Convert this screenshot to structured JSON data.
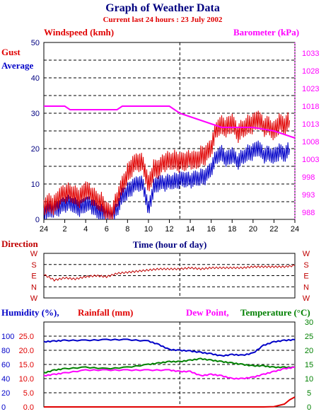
{
  "title": "Graph of Weather Data",
  "subtitle": "Current last 24 hours : 23 July 2002",
  "colors": {
    "gust": "#e00000",
    "average": "#0000c8",
    "barometer": "#ff00ff",
    "direction": "#c00000",
    "humidity": "#0000c8",
    "rainfall": "#e00000",
    "dewpoint": "#ff00ff",
    "temperature": "#008000",
    "grid": "#000000"
  },
  "chart_data": [
    {
      "type": "line",
      "name": "wind-barometer",
      "labels": {
        "left_title": "Windspeed (kmh)",
        "right_title": "Barometer (kPa)",
        "gust": "Gust",
        "average": "Average",
        "xlabel": "Time (hour of day)"
      },
      "x_ticks": [
        "24",
        "2",
        "4",
        "6",
        "8",
        "10",
        "12",
        "14",
        "16",
        "18",
        "20",
        "22",
        "24"
      ],
      "y_left_ticks": [
        "0",
        "10",
        "20",
        "30",
        "40",
        "50"
      ],
      "y_right_ticks": [
        "988",
        "993",
        "998",
        "1003",
        "1008",
        "1013",
        "1018",
        "1023",
        "1028",
        "1033"
      ],
      "xlim": [
        0,
        24
      ],
      "ylim_left": [
        0,
        50
      ],
      "ylim_right": [
        986,
        1036
      ],
      "marker_hour": 13,
      "series": [
        {
          "name": "Gust",
          "x": [
            0,
            0.5,
            1,
            1.5,
            2,
            2.5,
            3,
            3.5,
            4,
            4.5,
            5,
            5.5,
            6,
            6.5,
            7,
            7.5,
            8,
            8.5,
            9,
            9.5,
            10,
            10.5,
            11,
            11.5,
            12,
            12.5,
            13,
            13.5,
            14,
            14.5,
            15,
            15.5,
            16,
            16.5,
            17,
            17.5,
            18,
            18.5,
            19,
            19.5,
            20,
            20.5,
            21,
            21.5,
            22,
            22.5,
            23,
            23.5
          ],
          "values": [
            4,
            5,
            4,
            6,
            7,
            8,
            7,
            6,
            8,
            7,
            6,
            5,
            2,
            1,
            6,
            10,
            13,
            15,
            16,
            16,
            10,
            14,
            14,
            16,
            17,
            17,
            16,
            16,
            17,
            17,
            18,
            18,
            20,
            26,
            27,
            26,
            27,
            24,
            26,
            27,
            27,
            28,
            26,
            27,
            25,
            27,
            26,
            28
          ]
        },
        {
          "name": "Average",
          "x": [
            0,
            0.5,
            1,
            1.5,
            2,
            2.5,
            3,
            3.5,
            4,
            4.5,
            5,
            5.5,
            6,
            6.5,
            7,
            7.5,
            8,
            8.5,
            9,
            9.5,
            10,
            10.5,
            11,
            11.5,
            12,
            12.5,
            13,
            13.5,
            14,
            14.5,
            15,
            15.5,
            16,
            16.5,
            17,
            17.5,
            18,
            18.5,
            19,
            19.5,
            20,
            20.5,
            21,
            21.5,
            22,
            22.5,
            23,
            23.5
          ],
          "values": [
            2,
            3,
            3,
            3,
            4,
            5,
            4,
            3,
            4,
            4,
            3,
            2,
            1,
            0,
            3,
            7,
            8,
            9,
            10,
            10,
            3,
            9,
            10,
            10,
            11,
            11,
            11,
            11,
            11,
            12,
            12,
            12,
            14,
            18,
            19,
            17,
            18,
            16,
            18,
            19,
            19,
            20,
            18,
            19,
            18,
            19,
            18,
            20
          ]
        },
        {
          "name": "Barometer",
          "axis": "right",
          "x": [
            0,
            2,
            2.5,
            7,
            7.5,
            12,
            12.5,
            13,
            14,
            15,
            16,
            17,
            20,
            22,
            23,
            24
          ],
          "values": [
            1018,
            1018,
            1017,
            1017,
            1018,
            1018,
            1017,
            1016,
            1015,
            1014,
            1013,
            1012,
            1012,
            1011,
            1010,
            1009
          ]
        }
      ]
    },
    {
      "type": "line",
      "name": "direction",
      "labels": {
        "left_title": "Direction"
      },
      "y_ticks": [
        "W",
        "S",
        "E",
        "N",
        "W"
      ],
      "xlim": [
        0,
        24
      ],
      "series": [
        {
          "name": "Direction",
          "x": [
            0,
            1,
            2,
            3,
            4,
            5,
            6,
            7,
            8,
            9,
            10,
            11,
            12,
            13,
            14,
            15,
            16,
            17,
            18,
            19,
            20,
            21,
            22,
            23,
            24
          ],
          "values": [
            2.1,
            1.6,
            1.8,
            1.7,
            1.9,
            2.0,
            1.9,
            2.2,
            2.3,
            2.4,
            2.5,
            2.6,
            2.6,
            2.6,
            2.7,
            2.6,
            2.7,
            2.7,
            2.7,
            2.7,
            2.8,
            2.8,
            2.8,
            2.8,
            2.9
          ]
        }
      ]
    },
    {
      "type": "line",
      "name": "humidity-rain-dew-temp",
      "labels": {
        "humidity": "Humidity (%),",
        "rainfall": "Rainfall (mm)",
        "dewpoint": "Dew Point,",
        "temperature": "Temperature (°C)"
      },
      "y_humidity_ticks": [
        "0",
        "20",
        "40",
        "60",
        "80",
        "100"
      ],
      "y_rain_ticks": [
        "0.0",
        "5.0",
        "10.0",
        "15.0",
        "20.0",
        "25.0"
      ],
      "y_right_ticks": [
        "0",
        "5",
        "10",
        "15",
        "20",
        "25",
        "30"
      ],
      "xlim": [
        0,
        24
      ],
      "series": [
        {
          "name": "Humidity",
          "axis": "humidity",
          "x": [
            0,
            1,
            2,
            4,
            6,
            8,
            10,
            11,
            12,
            13,
            14,
            15,
            16,
            17,
            18,
            19,
            20,
            21,
            22,
            23,
            24
          ],
          "values": [
            92,
            93,
            94,
            94,
            95,
            95,
            93,
            88,
            81,
            80,
            79,
            77,
            75,
            72,
            74,
            73,
            76,
            87,
            92,
            94,
            95
          ]
        },
        {
          "name": "Rainfall",
          "axis": "rain",
          "x": [
            0,
            18,
            19,
            20,
            21,
            22,
            23,
            23.5,
            24
          ],
          "values": [
            0,
            0,
            0,
            0,
            0,
            0.1,
            1.0,
            2.5,
            3.5
          ]
        },
        {
          "name": "Dew Point",
          "axis": "right",
          "x": [
            0,
            1,
            2,
            4,
            6,
            8,
            10,
            12,
            13,
            14,
            15,
            16,
            17,
            18,
            19,
            20,
            21,
            22,
            23,
            24
          ],
          "values": [
            11,
            11.5,
            12,
            13,
            13,
            13,
            13,
            13,
            12.5,
            12.5,
            11,
            11.5,
            11,
            10,
            10,
            10.5,
            11.5,
            12.5,
            13.5,
            14
          ]
        },
        {
          "name": "Temperature",
          "axis": "right",
          "x": [
            0,
            1,
            2,
            4,
            6,
            8,
            10,
            11,
            12,
            13,
            14,
            15,
            16,
            17,
            18,
            19,
            20,
            21,
            22,
            23,
            24
          ],
          "values": [
            12,
            13,
            13.5,
            14,
            13.5,
            14,
            15,
            15.5,
            16,
            16,
            16.5,
            17,
            16.5,
            16,
            15.5,
            15,
            14.5,
            14.5,
            14,
            14,
            14
          ]
        }
      ]
    }
  ]
}
